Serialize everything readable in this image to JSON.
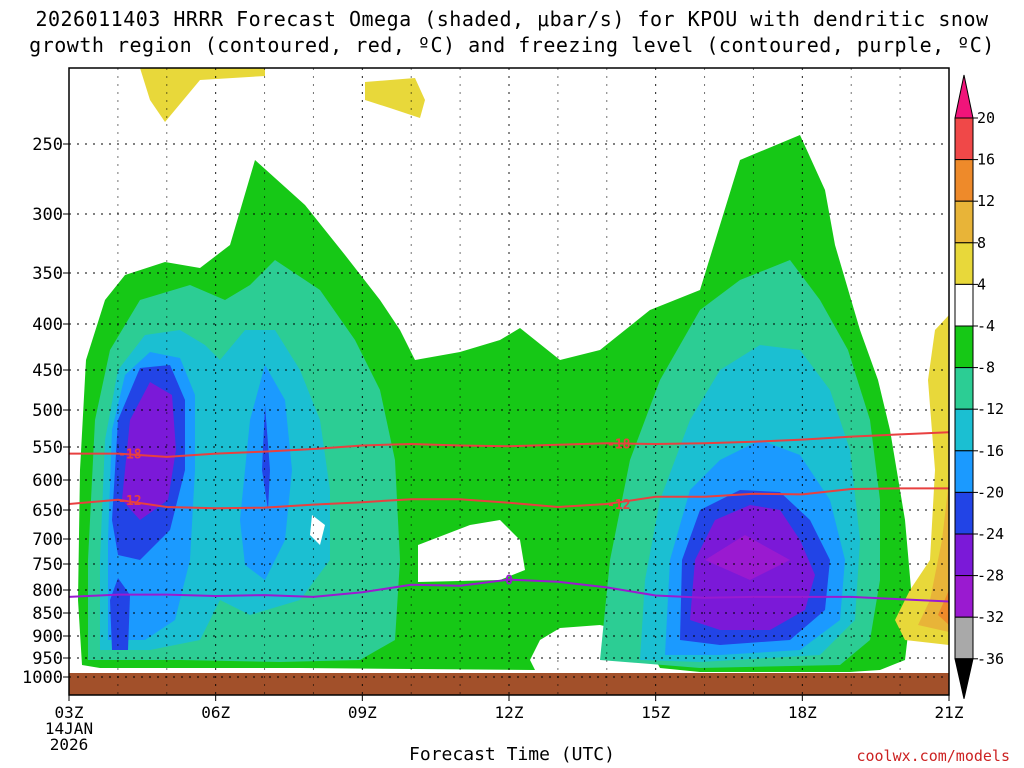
{
  "title": "2026011403 HRRR Forecast Omega (shaded, μbar/s) for KPOU with dendritic snow\ngrowth region (contoured, red, ºC) and freezing level (contoured, purple, ºC)",
  "watermark": "coolwx.com/models",
  "chart_data": {
    "type": "heatmap",
    "title": "2026011403 HRRR Forecast Omega (shaded, μbar/s) for KPOU with dendritic snow growth region (contoured, red, ºC) and freezing level (contoured, purple, ºC)",
    "xlabel": "Forecast Time (UTC)",
    "ylabel": "",
    "x_ticks": [
      "03Z",
      "06Z",
      "09Z",
      "12Z",
      "15Z",
      "18Z",
      "21Z"
    ],
    "x_start_label": [
      "03Z",
      "14JAN",
      "2026"
    ],
    "x_range_hours": [
      3,
      21
    ],
    "y_ticks": [
      250,
      300,
      350,
      400,
      450,
      500,
      550,
      600,
      650,
      700,
      750,
      800,
      850,
      900,
      950,
      1000
    ],
    "y_range_hPa": [
      1030,
      200
    ],
    "grid": true,
    "colorbar": {
      "levels": [
        20,
        16,
        12,
        8,
        4,
        -4,
        -8,
        -12,
        -16,
        -20,
        -24,
        -28,
        -32,
        -36
      ],
      "colors": [
        "#f0147a",
        "#f04848",
        "#ee8a2a",
        "#e8b438",
        "#e8d83a",
        "#ffffff",
        "#16c816",
        "#2ccd94",
        "#1bbfd2",
        "#1b9aff",
        "#2244e6",
        "#7b19d8",
        "#9a1ad0",
        "#a9a9a9",
        "#000000"
      ]
    },
    "series": [
      {
        "name": "dendritic snow growth region -18",
        "color": "#e84040",
        "label": "-18",
        "x": [
          3.0,
          4.0,
          5.0,
          6.0,
          7.0,
          8.0,
          9.0,
          10.0,
          11.0,
          12.0,
          13.0,
          14.0,
          15.0,
          16.0,
          17.0,
          18.0,
          19.0,
          20.0,
          21.0
        ],
        "y": [
          560,
          560,
          565,
          560,
          557,
          553,
          548,
          546,
          548,
          549,
          547,
          545,
          546,
          545,
          543,
          540,
          536,
          533,
          530
        ]
      },
      {
        "name": "dendritic snow growth region -12",
        "color": "#e84040",
        "label": "-12",
        "x": [
          3.0,
          4.0,
          5.0,
          6.0,
          7.0,
          8.0,
          9.0,
          10.0,
          11.0,
          12.0,
          13.0,
          14.0,
          15.0,
          16.0,
          17.0,
          18.0,
          19.0,
          20.0,
          21.0
        ],
        "y": [
          640,
          633,
          645,
          647,
          646,
          641,
          637,
          632,
          632,
          638,
          645,
          640,
          628,
          628,
          623,
          624,
          615,
          614,
          614
        ]
      },
      {
        "name": "freezing level 0",
        "color": "#9a1ad0",
        "label": "0",
        "x": [
          3.0,
          4.0,
          5.0,
          6.0,
          7.0,
          8.0,
          9.0,
          10.0,
          11.0,
          12.0,
          13.0,
          14.0,
          15.0,
          16.0,
          17.0,
          18.0,
          19.0,
          20.0,
          21.0
        ],
        "y": [
          815,
          810,
          810,
          813,
          811,
          815,
          805,
          790,
          792,
          780,
          784,
          795,
          812,
          817,
          815,
          815,
          815,
          820,
          825
        ]
      }
    ]
  }
}
